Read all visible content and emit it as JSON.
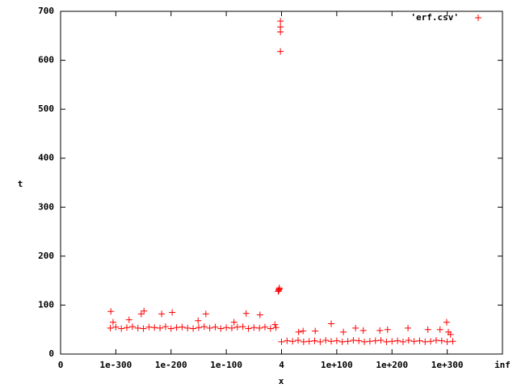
{
  "chart_data": {
    "type": "scatter",
    "x_label": "x",
    "y_label": "t",
    "xlim": [
      0,
      8
    ],
    "xticks": [
      0,
      {
        "value": 1,
        "label": "1e-300"
      },
      {
        "value": 2,
        "label": "1e-200"
      },
      {
        "value": 3,
        "label": "1e-100"
      },
      4,
      {
        "value": 5,
        "label": "1e+100"
      },
      {
        "value": 6,
        "label": "1e+200"
      },
      {
        "value": 7,
        "label": "1e+300"
      },
      {
        "value": 8,
        "label": "inf"
      }
    ],
    "ylim": [
      0,
      700
    ],
    "yticks": [
      0,
      100,
      200,
      300,
      400,
      500,
      600,
      700
    ],
    "legend_position": "top-right",
    "series": [
      {
        "name": "'erf.csv'",
        "color": "#ff0000",
        "x": [
          0.9,
          1.0,
          1.1,
          1.2,
          1.3,
          1.4,
          1.5,
          1.6,
          1.7,
          1.8,
          1.9,
          2.0,
          2.1,
          2.2,
          2.3,
          2.4,
          2.5,
          2.6,
          2.7,
          2.8,
          2.9,
          3.0,
          3.1,
          3.2,
          3.3,
          3.4,
          3.5,
          3.6,
          3.7,
          3.8,
          3.9,
          0.91,
          0.95,
          1.24,
          1.46,
          1.51,
          1.83,
          2.02,
          2.49,
          2.63,
          3.14,
          3.36,
          3.61,
          3.88,
          3.94,
          3.95,
          3.96,
          3.95,
          3.96,
          3.98,
          3.98,
          3.98,
          3.98,
          4.0,
          4.1,
          4.2,
          4.3,
          4.4,
          4.5,
          4.6,
          4.7,
          4.8,
          4.9,
          5.0,
          5.1,
          5.2,
          5.3,
          5.4,
          5.5,
          5.6,
          5.7,
          5.8,
          5.9,
          6.0,
          6.1,
          6.2,
          6.3,
          6.4,
          6.5,
          6.6,
          6.7,
          6.8,
          6.9,
          7.0,
          7.1,
          4.31,
          4.39,
          4.61,
          4.9,
          5.12,
          5.34,
          5.48,
          5.78,
          5.92,
          6.29,
          6.65,
          6.87,
          6.99,
          7.02,
          7.06
        ],
        "values": [
          53,
          55,
          52,
          54,
          56,
          53,
          52,
          55,
          54,
          53,
          56,
          52,
          54,
          55,
          53,
          52,
          54,
          56,
          53,
          55,
          52,
          54,
          53,
          55,
          56,
          52,
          54,
          53,
          55,
          52,
          54,
          87,
          65,
          70,
          82,
          88,
          82,
          85,
          68,
          82,
          65,
          83,
          80,
          60,
          128,
          131,
          135,
          130,
          133,
          618,
          658,
          668,
          680,
          25,
          27,
          26,
          28,
          25,
          26,
          27,
          25,
          28,
          26,
          27,
          25,
          26,
          28,
          27,
          25,
          26,
          27,
          28,
          25,
          26,
          27,
          25,
          28,
          26,
          27,
          25,
          26,
          28,
          27,
          25,
          26,
          45,
          47,
          47,
          62,
          45,
          53,
          48,
          48,
          50,
          53,
          50,
          50,
          65,
          45,
          40
        ]
      }
    ]
  }
}
